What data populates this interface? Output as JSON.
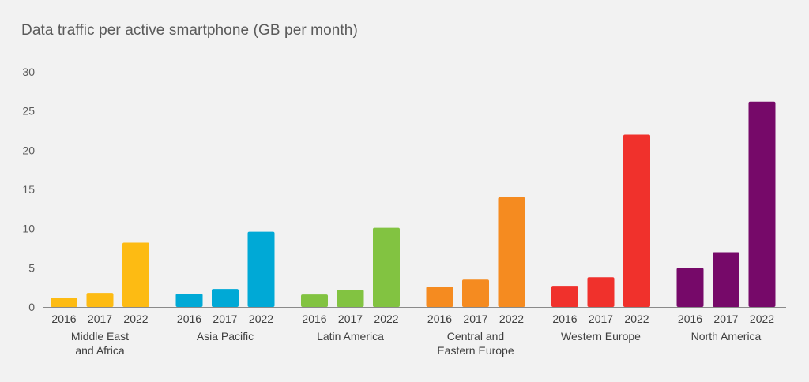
{
  "chart_data": {
    "type": "bar",
    "title": "Data traffic per active smartphone (GB per month)",
    "xlabel": "",
    "ylabel": "",
    "ylim": [
      0,
      30
    ],
    "yticks": [
      "0",
      "5",
      "10",
      "15",
      "20",
      "25",
      "30"
    ],
    "grid": false,
    "years": [
      "2016",
      "2017",
      "2022"
    ],
    "groups": [
      {
        "region": [
          "Middle East",
          "and Africa"
        ],
        "color": "#fdbb13",
        "values": [
          1.2,
          1.8,
          8.2
        ]
      },
      {
        "region": [
          "Asia Pacific"
        ],
        "color": "#00a9d6",
        "values": [
          1.7,
          2.3,
          9.6
        ]
      },
      {
        "region": [
          "Latin America"
        ],
        "color": "#82c341",
        "values": [
          1.6,
          2.2,
          10.1
        ]
      },
      {
        "region": [
          "Central and",
          "Eastern Europe"
        ],
        "color": "#f58b20",
        "values": [
          2.6,
          3.5,
          14.0
        ]
      },
      {
        "region": [
          "Western Europe"
        ],
        "color": "#f0312c",
        "values": [
          2.7,
          3.8,
          22.0
        ]
      },
      {
        "region": [
          "North America"
        ],
        "color": "#760969",
        "values": [
          5.0,
          7.0,
          26.2
        ]
      }
    ]
  }
}
